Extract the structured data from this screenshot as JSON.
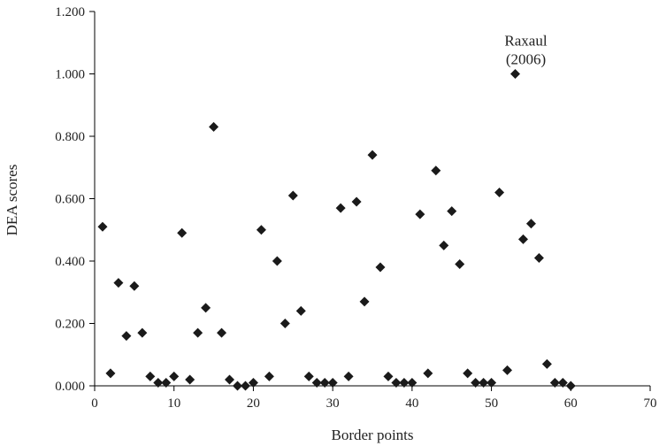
{
  "chart_data": {
    "type": "scatter",
    "xlabel": "Border points",
    "ylabel": "DEA scores",
    "xlim": [
      0,
      70
    ],
    "ylim": [
      0,
      1.2
    ],
    "x_ticks": [
      0,
      10,
      20,
      30,
      40,
      50,
      60,
      70
    ],
    "y_ticks": [
      0,
      0.2,
      0.4,
      0.6,
      0.8,
      1.0,
      1.2
    ],
    "x_tick_labels": [
      "0",
      "10",
      "20",
      "30",
      "40",
      "50",
      "60",
      "70"
    ],
    "y_tick_labels": [
      "0.000",
      "0.200",
      "0.400",
      "0.600",
      "0.800",
      "1.000",
      "1.200"
    ],
    "grid": false,
    "marker": "diamond",
    "marker_color": "#1a1a1a",
    "series": [
      {
        "x": [
          1,
          2,
          3,
          4,
          5,
          6,
          7,
          8,
          9,
          10,
          11,
          12,
          13,
          14,
          15,
          16,
          17,
          18,
          19,
          20,
          21,
          22,
          23,
          24,
          25,
          26,
          27,
          28,
          29,
          30,
          31,
          32,
          33,
          34,
          35,
          36,
          37,
          38,
          39,
          40,
          41,
          42,
          43,
          44,
          45,
          46,
          47,
          48,
          49,
          50,
          51,
          52,
          53,
          54,
          55,
          56,
          57,
          58,
          59,
          60
        ],
        "y": [
          0.51,
          0.04,
          0.33,
          0.16,
          0.32,
          0.17,
          0.03,
          0.01,
          0.01,
          0.03,
          0.49,
          0.02,
          0.17,
          0.25,
          0.83,
          0.17,
          0.02,
          0.0,
          0.0,
          0.01,
          0.5,
          0.03,
          0.4,
          0.2,
          0.61,
          0.24,
          0.03,
          0.01,
          0.01,
          0.01,
          0.57,
          0.03,
          0.59,
          0.27,
          0.74,
          0.38,
          0.03,
          0.01,
          0.01,
          0.01,
          0.55,
          0.04,
          0.69,
          0.45,
          0.56,
          0.39,
          0.04,
          0.01,
          0.01,
          0.01,
          0.62,
          0.05,
          1.0,
          0.47,
          0.52,
          0.41,
          0.07,
          0.01,
          0.01,
          0.0
        ]
      }
    ],
    "annotations": [
      {
        "line1": "Raxaul",
        "line2": "(2006)",
        "x": 53,
        "y": 1.0
      }
    ]
  }
}
